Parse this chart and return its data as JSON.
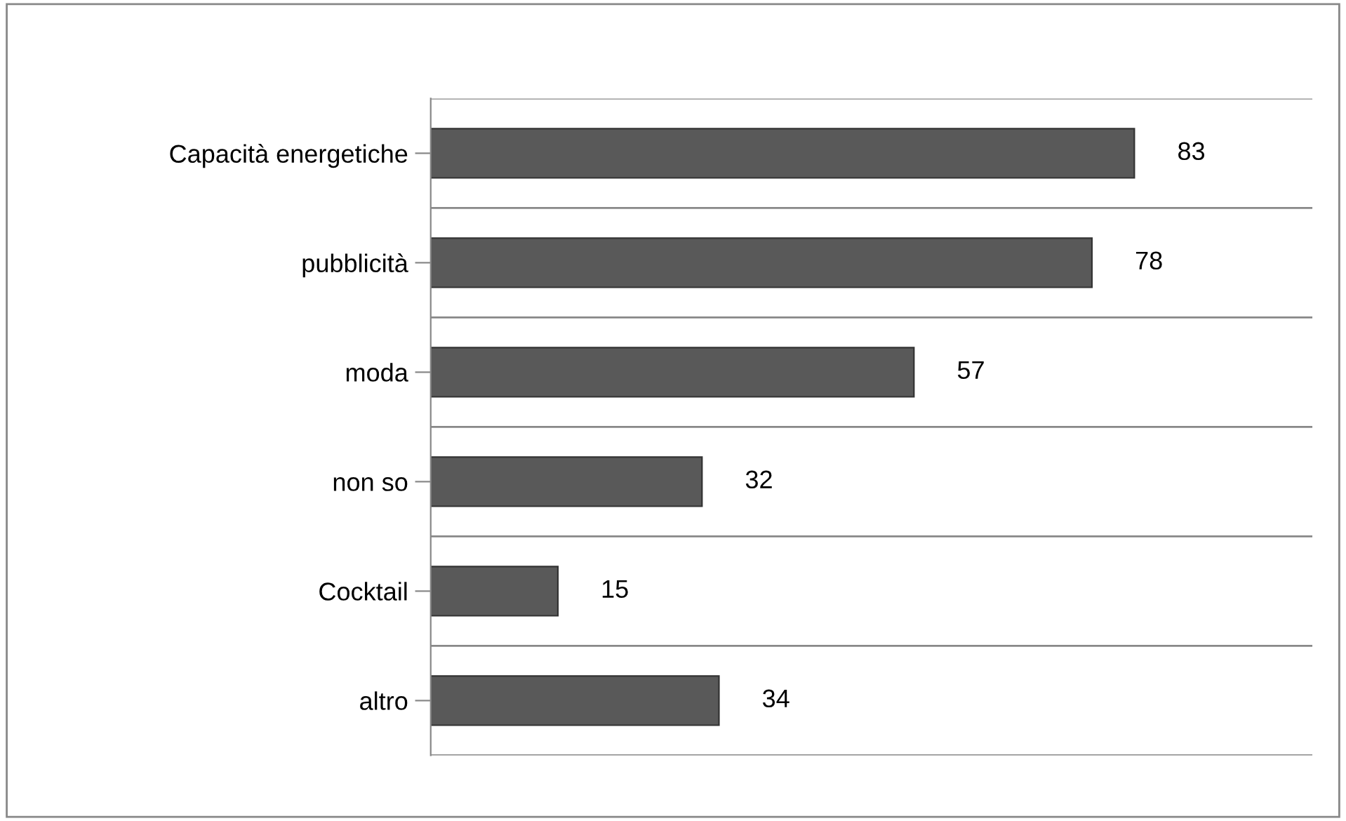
{
  "chart_data": {
    "type": "bar",
    "orientation": "horizontal",
    "categories": [
      "Capacità energetiche",
      "pubblicità",
      "moda",
      "non so",
      "Cocktail",
      "altro"
    ],
    "values": [
      83,
      78,
      57,
      32,
      15,
      34
    ],
    "color": "#595959",
    "data_labels": true,
    "xlim": [
      0,
      104
    ],
    "tick_labels": "y",
    "grid": "y",
    "legend": false
  }
}
